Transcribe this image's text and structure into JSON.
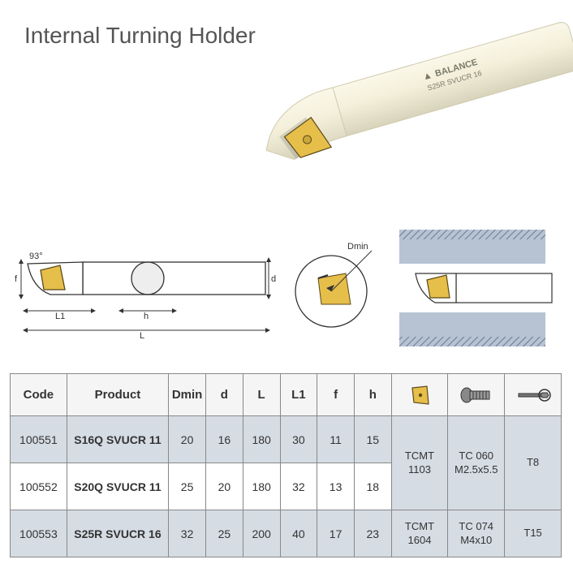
{
  "title": "Internal Turning Holder",
  "brand": "BALANCE",
  "product_marking": "S25R SVUCR 16",
  "diagram_labels": {
    "f": "f",
    "angle": "93°",
    "L1": "L1",
    "h": "h",
    "L": "L",
    "d": "d",
    "Dmin": "Dmin"
  },
  "colors": {
    "page_bg": "#ffffff",
    "title_text": "#555555",
    "table_border": "#888888",
    "header_bg": "#f5f5f5",
    "row_shade": "#d5dce4",
    "tool_body": "#f3efd9",
    "tool_shadow": "#d8d4bc",
    "insert": "#e6be4a",
    "insert_edge": "#5a4a1a",
    "diagram_stroke": "#333333",
    "bore_block": "#b7c3d3",
    "hatch": "#6a7a90"
  },
  "table": {
    "headers": [
      "Code",
      "Product",
      "Dmin",
      "d",
      "L",
      "L1",
      "f",
      "h"
    ],
    "icon_headers": [
      "insert-icon",
      "screw-icon",
      "wrench-icon"
    ],
    "rows": [
      {
        "code": "100551",
        "product": "S16Q SVUCR 11",
        "dmin": "20",
        "d": "16",
        "L": "180",
        "L1": "30",
        "f": "11",
        "h": "15",
        "shaded": true
      },
      {
        "code": "100552",
        "product": "S20Q SVUCR 11",
        "dmin": "25",
        "d": "20",
        "L": "180",
        "L1": "32",
        "f": "13",
        "h": "18",
        "shaded": false
      },
      {
        "code": "100553",
        "product": "S25R SVUCR 16",
        "dmin": "32",
        "d": "25",
        "L": "200",
        "L1": "40",
        "f": "17",
        "h": "23",
        "shaded": true
      }
    ],
    "accessory_groups": [
      {
        "span": 2,
        "insert": "TCMT\n1103",
        "screw": "TC 060\nM2.5x5.5",
        "wrench": "T8"
      },
      {
        "span": 1,
        "insert": "TCMT\n1604",
        "screw": "TC 074\nM4x10",
        "wrench": "T15"
      }
    ]
  }
}
